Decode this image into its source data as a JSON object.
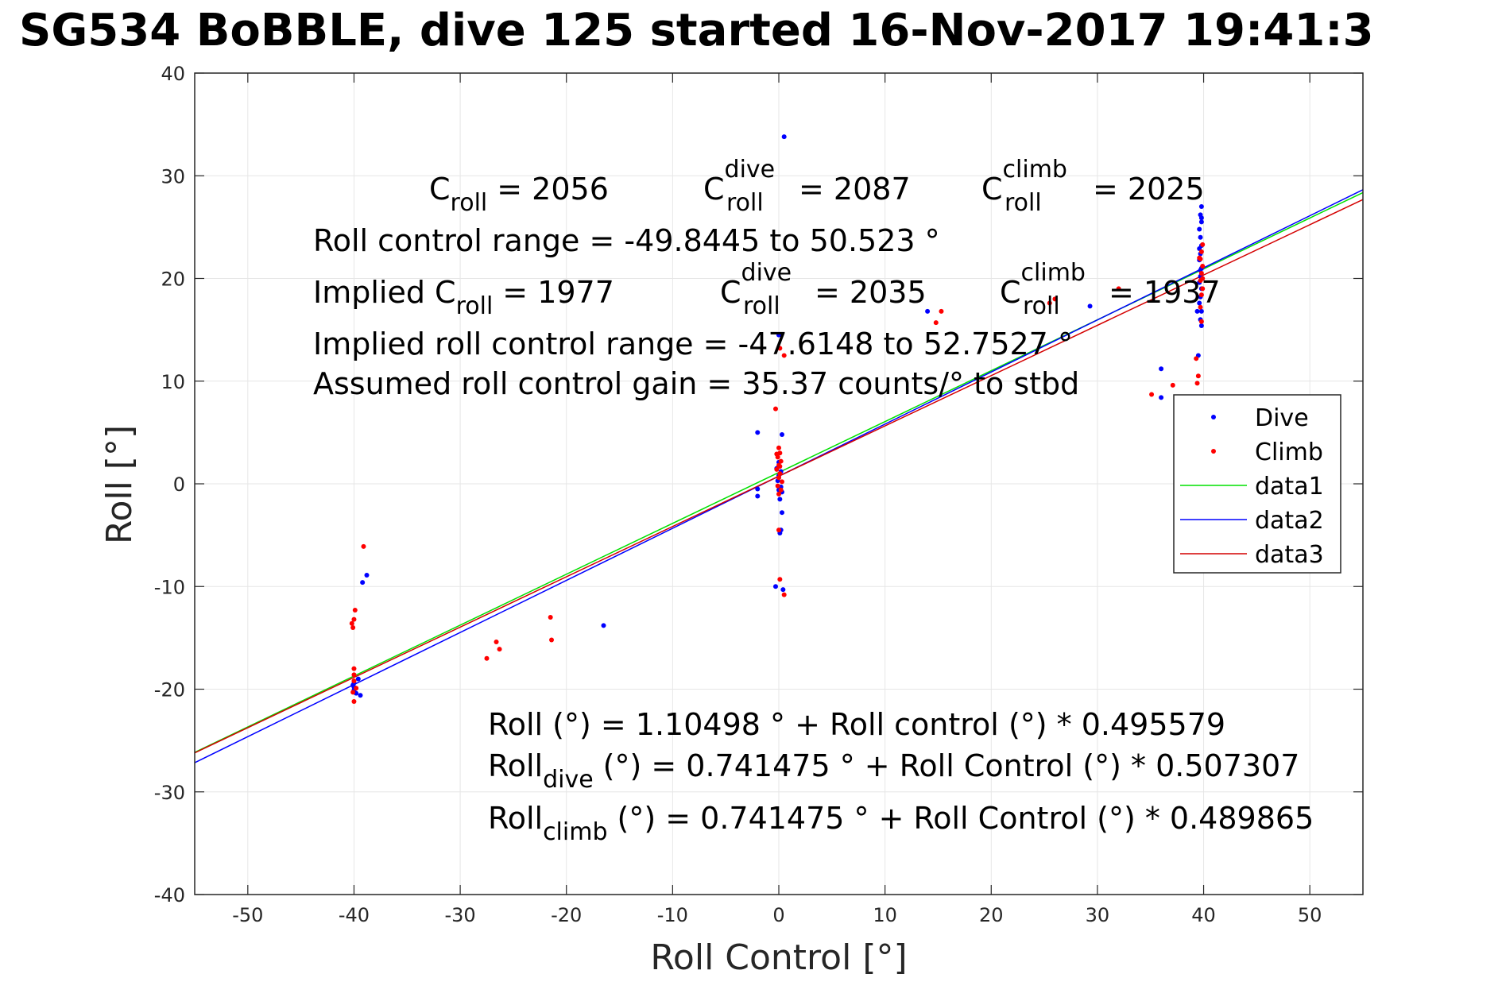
{
  "title": "SG534 BoBBLE, dive 125 started 16-Nov-2017 19:41:3",
  "chart_data": {
    "type": "scatter",
    "xlabel": "Roll Control [°]",
    "ylabel": "Roll [°]",
    "xlim": [
      -55,
      55
    ],
    "ylim": [
      -40,
      40
    ],
    "grid": true,
    "xticks": [
      -50,
      -40,
      -30,
      -20,
      -10,
      0,
      10,
      20,
      30,
      40,
      50
    ],
    "yticks": [
      -40,
      -30,
      -20,
      -10,
      0,
      10,
      20,
      30,
      40
    ],
    "xtick_labels": [
      "-50",
      "-40",
      "-30",
      "-20",
      "-10",
      "0",
      "10",
      "20",
      "30",
      "40",
      "50"
    ],
    "ytick_labels": [
      "-40",
      "-30",
      "-20",
      "-10",
      "0",
      "10",
      "20",
      "30",
      "40"
    ],
    "legend": {
      "position": "right",
      "entries": [
        {
          "name": "Dive",
          "color": "#0000ff",
          "style": "marker"
        },
        {
          "name": "Climb",
          "color": "#ff0000",
          "style": "marker"
        },
        {
          "name": "data1",
          "color": "#00e000",
          "style": "line"
        },
        {
          "name": "data2",
          "color": "#0000ff",
          "style": "line"
        },
        {
          "name": "data3",
          "color": "#d40000",
          "style": "line"
        }
      ]
    },
    "series": [
      {
        "name": "Dive",
        "kind": "points",
        "color": "#0000ff",
        "points": [
          [
            -40,
            -19.4
          ],
          [
            -40,
            -20.1
          ],
          [
            -40,
            -19.8
          ],
          [
            -39.8,
            -20.4
          ],
          [
            -39.6,
            -19.0
          ],
          [
            -39.2,
            -9.6
          ],
          [
            -38.8,
            -8.9
          ],
          [
            -39.4,
            -20.6
          ],
          [
            -40.1,
            -19.6
          ],
          [
            -16.5,
            -13.8
          ],
          [
            -2,
            5.0
          ],
          [
            -2,
            -0.5
          ],
          [
            -2,
            -1.2
          ],
          [
            0.5,
            33.8
          ],
          [
            0,
            14.5
          ],
          [
            0.3,
            4.8
          ],
          [
            0.2,
            -4.5
          ],
          [
            0.1,
            -4.8
          ],
          [
            0.4,
            -10.3
          ],
          [
            -0.3,
            -10.0
          ],
          [
            0,
            0.8
          ],
          [
            0.2,
            -0.3
          ],
          [
            -0.2,
            1.5
          ],
          [
            0.3,
            -0.8
          ],
          [
            0,
            2.1
          ],
          [
            0.1,
            -1.5
          ],
          [
            -0.1,
            0.3
          ],
          [
            0.2,
            1.2
          ],
          [
            0.3,
            -2.8
          ],
          [
            0,
            -0.6
          ],
          [
            14,
            16.8
          ],
          [
            29.3,
            17.3
          ],
          [
            36,
            11.2
          ],
          [
            36,
            8.4
          ],
          [
            39.5,
            12.5
          ],
          [
            39.4,
            16.8
          ],
          [
            39.8,
            27.0
          ],
          [
            39.7,
            26.2
          ],
          [
            39.8,
            25.5
          ],
          [
            39.6,
            24.8
          ],
          [
            39.7,
            24.0
          ],
          [
            39.8,
            23.2
          ],
          [
            39.7,
            22.4
          ],
          [
            39.6,
            21.8
          ],
          [
            39.8,
            21.0
          ],
          [
            39.7,
            20.2
          ],
          [
            39.6,
            19.6
          ],
          [
            39.8,
            19.0
          ],
          [
            39.7,
            18.2
          ],
          [
            39.6,
            17.6
          ],
          [
            39.8,
            16.8
          ],
          [
            39.7,
            16.0
          ],
          [
            39.8,
            15.4
          ],
          [
            39.7,
            20.8
          ],
          [
            39.6,
            22.9
          ],
          [
            39.8,
            25.9
          ]
        ]
      },
      {
        "name": "Climb",
        "kind": "points",
        "color": "#ff0000",
        "points": [
          [
            -40,
            -18.0
          ],
          [
            -40,
            -18.6
          ],
          [
            -40,
            -19.2
          ],
          [
            -39.8,
            -19.9
          ],
          [
            -40.1,
            -20.3
          ],
          [
            -40,
            -21.2
          ],
          [
            -39.9,
            -12.3
          ],
          [
            -40,
            -13.2
          ],
          [
            -40.2,
            -13.6
          ],
          [
            -40.1,
            -14.0
          ],
          [
            -39.1,
            -6.1
          ],
          [
            -27.5,
            -17.0
          ],
          [
            -26.6,
            -15.4
          ],
          [
            -26.3,
            -16.1
          ],
          [
            -21.5,
            -13.0
          ],
          [
            -21.4,
            -15.2
          ],
          [
            0,
            3.5
          ],
          [
            0.1,
            3.0
          ],
          [
            -0.1,
            2.6
          ],
          [
            0.2,
            2.2
          ],
          [
            0,
            1.8
          ],
          [
            -0.2,
            1.4
          ],
          [
            0.1,
            1.0
          ],
          [
            0,
            0.6
          ],
          [
            0.3,
            0.2
          ],
          [
            -0.1,
            -0.2
          ],
          [
            0.2,
            -0.6
          ],
          [
            0,
            -1.0
          ],
          [
            0.1,
            1.7
          ],
          [
            -0.2,
            2.9
          ],
          [
            0.1,
            13.2
          ],
          [
            0.5,
            12.5
          ],
          [
            -0.3,
            7.3
          ],
          [
            0,
            -4.5
          ],
          [
            0.1,
            -9.3
          ],
          [
            0.5,
            -10.8
          ],
          [
            15.3,
            16.8
          ],
          [
            14.8,
            15.7
          ],
          [
            26,
            18.0
          ],
          [
            25.5,
            17.6
          ],
          [
            32,
            19.0
          ],
          [
            35.1,
            8.7
          ],
          [
            37.1,
            9.6
          ],
          [
            39.4,
            9.8
          ],
          [
            39.5,
            10.5
          ],
          [
            39.3,
            12.2
          ],
          [
            39.9,
            23.3
          ],
          [
            39.8,
            22.6
          ],
          [
            39.7,
            21.9
          ],
          [
            39.9,
            21.2
          ],
          [
            39.8,
            20.5
          ],
          [
            39.7,
            19.8
          ],
          [
            39.9,
            19.0
          ],
          [
            39.8,
            18.4
          ],
          [
            39.7,
            17.2
          ],
          [
            39.8,
            15.8
          ],
          [
            39.6,
            22.0
          ],
          [
            39.9,
            20.0
          ]
        ]
      },
      {
        "name": "data1",
        "kind": "line",
        "color": "#00e000",
        "intercept": 1.10498,
        "slope": 0.495579
      },
      {
        "name": "data2",
        "kind": "line",
        "color": "#0000ff",
        "intercept": 0.741475,
        "slope": 0.507307
      },
      {
        "name": "data3",
        "kind": "line",
        "color": "#d40000",
        "intercept": 0.741475,
        "slope": 0.489865
      }
    ],
    "annotations": {
      "c_roll": "= 2056",
      "c_roll_dive": "= 2087",
      "c_roll_climb": "= 2025",
      "roll_control_range": "Roll control range = -49.8445 to 50.523 °",
      "implied_prefix": "Implied C",
      "implied_c_roll": "= 1977",
      "implied_c_roll_dive": "= 2035",
      "implied_c_roll_climb": "= 1937",
      "implied_range": "Implied roll control range = -47.6148 to 52.7527 °",
      "assumed_gain": "Assumed roll control gain = 35.37 counts/° to stbd",
      "fit_all": "Roll (°) = 1.10498 ° + Roll control (°) * 0.495579",
      "fit_dive": "(°) = 0.741475 ° + Roll Control (°) * 0.507307",
      "fit_climb": "(°) = 0.741475 ° + Roll Control (°) * 0.489865",
      "sym_C": "C",
      "sym_Roll": "Roll",
      "sub_roll": "roll",
      "sup_dive": "dive",
      "sup_climb": "climb",
      "sub_dive": "dive",
      "sub_climb": "climb"
    }
  }
}
